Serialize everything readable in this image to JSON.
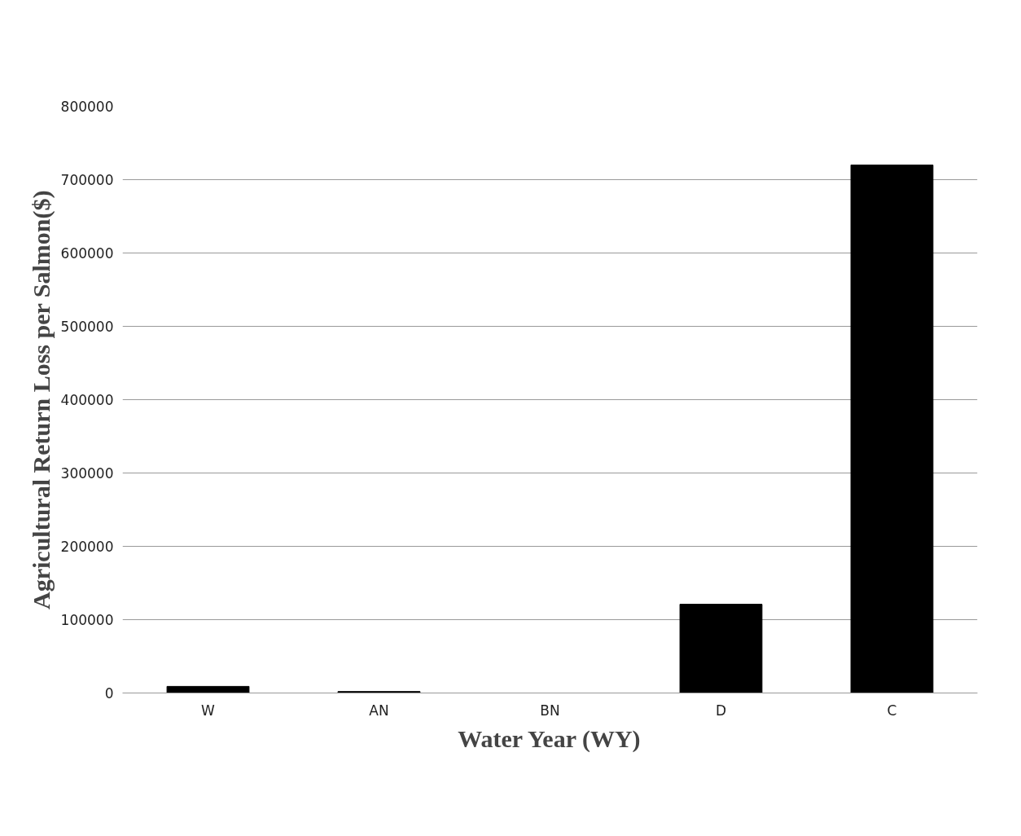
{
  "chart_data": {
    "type": "bar",
    "xlabel": "Water Year (WY)",
    "ylabel": "Agricultural Return Loss per Salmon($)",
    "categories": [
      "W",
      "AN",
      "BN",
      "D",
      "C"
    ],
    "values": [
      9000,
      2000,
      0,
      121000,
      720000
    ],
    "color": "#000000",
    "ylim": [
      0,
      800000
    ],
    "yticks": [
      0,
      100000,
      200000,
      300000,
      400000,
      500000,
      600000,
      700000,
      800000
    ],
    "grid": "y"
  }
}
